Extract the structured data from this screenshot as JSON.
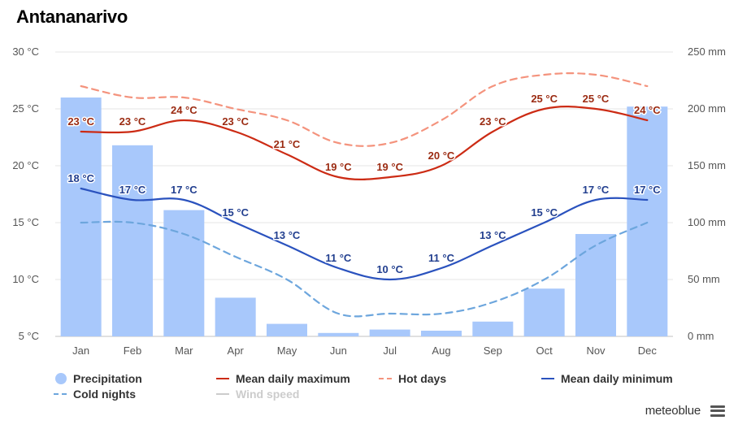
{
  "page": {
    "title": "Antananarivo",
    "brand": "meteoblue"
  },
  "colors": {
    "precipitation": "#a8c8fb",
    "mean_max": "#cc2b14",
    "hot_days": "#f4937d",
    "mean_min": "#2a52be",
    "cold_nights": "#6da6dd",
    "wind_speed": "#cccccc",
    "label_max": "#9b2b12",
    "label_min": "#223f8f"
  },
  "legend": [
    {
      "key": "precipitation",
      "label": "Precipitation",
      "symbol": "dot",
      "enabled": true
    },
    {
      "key": "mean_max",
      "label": "Mean daily maximum",
      "symbol": "line",
      "enabled": true
    },
    {
      "key": "hot_days",
      "label": "Hot days",
      "symbol": "dashed",
      "enabled": true
    },
    {
      "key": "mean_min",
      "label": "Mean daily minimum",
      "symbol": "line",
      "enabled": true
    },
    {
      "key": "cold_nights",
      "label": "Cold nights",
      "symbol": "dashed",
      "enabled": true
    },
    {
      "key": "wind_speed",
      "label": "Wind speed",
      "symbol": "line",
      "enabled": false
    }
  ],
  "chart_data": {
    "type": "bar+line",
    "title": "Antananarivo",
    "categories": [
      "Jan",
      "Feb",
      "Mar",
      "Apr",
      "May",
      "Jun",
      "Jul",
      "Aug",
      "Sep",
      "Oct",
      "Nov",
      "Dec"
    ],
    "y_left": {
      "min": 5,
      "max": 30,
      "ticks": [
        5,
        10,
        15,
        20,
        25,
        30
      ],
      "unit": "°C"
    },
    "y_right": {
      "min": 0,
      "max": 250,
      "ticks": [
        0,
        50,
        100,
        150,
        200,
        250
      ],
      "unit": "mm"
    },
    "grid": true,
    "legend_position": "bottom",
    "series": [
      {
        "name": "Precipitation",
        "type": "bar",
        "axis": "right",
        "values": [
          210,
          168,
          111,
          34,
          11,
          3,
          6,
          5,
          13,
          42,
          90,
          202
        ]
      },
      {
        "name": "Mean daily maximum",
        "type": "line",
        "axis": "left",
        "values": [
          23,
          23,
          24,
          23,
          21,
          19,
          19,
          20,
          23,
          25,
          25,
          24
        ],
        "labels": [
          "23 °C",
          "23 °C",
          "24 °C",
          "23 °C",
          "21 °C",
          "19 °C",
          "19 °C",
          "20 °C",
          "23 °C",
          "25 °C",
          "25 °C",
          "24 °C"
        ]
      },
      {
        "name": "Hot days",
        "type": "dashed",
        "axis": "left",
        "values": [
          27,
          26,
          26,
          25,
          24,
          22,
          22,
          24,
          27,
          28,
          28,
          27
        ]
      },
      {
        "name": "Mean daily minimum",
        "type": "line",
        "axis": "left",
        "values": [
          18,
          17,
          17,
          15,
          13,
          11,
          10,
          11,
          13,
          15,
          17,
          17
        ],
        "labels": [
          "18 °C",
          "17 °C",
          "17 °C",
          "15 °C",
          "13 °C",
          "11 °C",
          "10 °C",
          "11 °C",
          "13 °C",
          "15 °C",
          "17 °C",
          "17 °C"
        ]
      },
      {
        "name": "Cold nights",
        "type": "dashed",
        "axis": "left",
        "values": [
          15,
          15,
          14,
          12,
          10,
          7,
          7,
          7,
          8,
          10,
          13,
          15
        ]
      }
    ]
  }
}
